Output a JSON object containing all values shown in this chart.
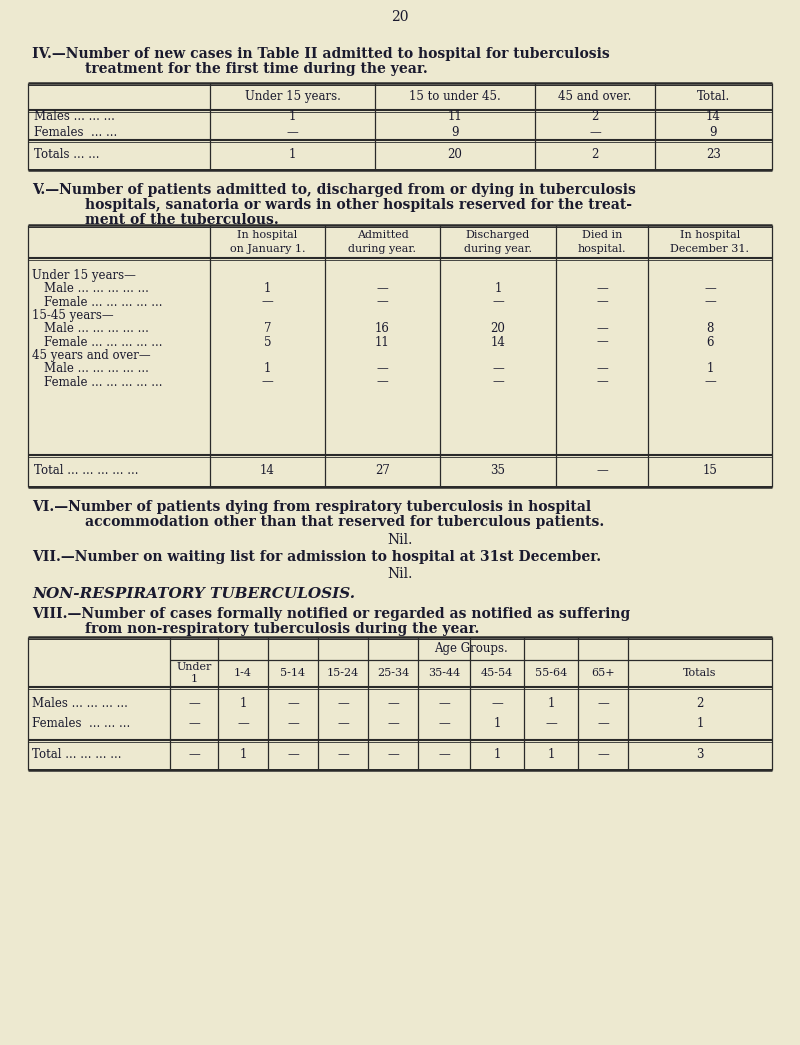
{
  "bg_color": "#ede9d0",
  "text_color": "#1a1a2e",
  "page_number": "20",
  "section_iv": {
    "title_line1": "IV.—Number of new cases in Table II admitted to hospital for tuberculosis",
    "title_line2": "treatment for the first time during the year.",
    "headers": [
      "",
      "Under 15 years.",
      "15 to under 45.",
      "45 and over.",
      "Total."
    ],
    "rows": [
      [
        "Males ... ... ...",
        "1",
        "11",
        "2",
        "14"
      ],
      [
        "Females  ... ...",
        "—",
        "9",
        "—",
        "9"
      ]
    ],
    "totals_row": [
      "Totals ... ...",
      "1",
      "20",
      "2",
      "23"
    ]
  },
  "section_v": {
    "title_line1": "V.—Number of patients admitted to, discharged from or dying in tuberculosis",
    "title_line2": "hospitals, sanatoria or wards in other hospitals reserved for the treat-",
    "title_line3": "ment of the tuberculous.",
    "headers": [
      "",
      "In hospital\non January 1.",
      "Admitted\nduring year.",
      "Discharged\nduring year.",
      "Died in\nhospital.",
      "In hospital\nDecember 31."
    ],
    "rows": [
      [
        "Under 15 years—",
        "",
        "",
        "",
        "",
        ""
      ],
      [
        "   Male ... ... ... ... ...",
        "1",
        "—",
        "1",
        "—",
        "—"
      ],
      [
        "   Female ... ... ... ... ...",
        "—",
        "—",
        "—",
        "—",
        "—"
      ],
      [
        "15-45 years—",
        "",
        "",
        "",
        "",
        ""
      ],
      [
        "   Male ... ... ... ... ...",
        "7",
        "16",
        "20",
        "—",
        "8"
      ],
      [
        "   Female ... ... ... ... ...",
        "5",
        "11",
        "14",
        "—",
        "6"
      ],
      [
        "45 years and over—",
        "",
        "",
        "",
        "",
        ""
      ],
      [
        "   Male ... ... ... ... ...",
        "1",
        "—",
        "—",
        "—",
        "1"
      ],
      [
        "   Female ... ... ... ... ...",
        "—",
        "—",
        "—",
        "—",
        "—"
      ]
    ],
    "totals_row": [
      "Total ... ... ... ... ...",
      "14",
      "27",
      "35",
      "—",
      "15"
    ]
  },
  "section_vi": {
    "title_line1": "VI.—Number of patients dying from respiratory tuberculosis in hospital",
    "title_line2": "accommodation other than that reserved for tuberculous patients.",
    "value": "Nil."
  },
  "section_vii": {
    "title": "VII.—Number on waiting list for admission to hospital at 31st December.",
    "value": "Nil."
  },
  "section_nonresp_header": "NON-RESPIRATORY TUBERCULOSIS.",
  "section_viii": {
    "title_line1": "VIII.—Number of cases formally notified or regarded as notified as suffering",
    "title_line2": "from non-respiratory tuberculosis during the year.",
    "age_groups_label": "Age Groups.",
    "headers": [
      "",
      "Under\n1",
      "1-4",
      "5-14",
      "15-24",
      "25-34",
      "35-44",
      "45-54",
      "55-64",
      "65+",
      "Totals"
    ],
    "rows": [
      [
        "Males ... ... ... ...",
        "—",
        "1",
        "—",
        "—",
        "—",
        "—",
        "—",
        "1",
        "—",
        "2"
      ],
      [
        "Females  ... ... ...",
        "—",
        "—",
        "—",
        "—",
        "—",
        "—",
        "1",
        "—",
        "—",
        "1"
      ]
    ],
    "totals_row": [
      "Total ... ... ... ...",
      "—",
      "1",
      "—",
      "—",
      "—",
      "—",
      "1",
      "1",
      "—",
      "3"
    ]
  }
}
